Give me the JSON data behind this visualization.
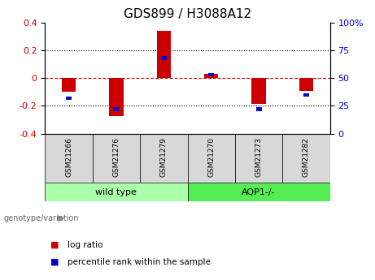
{
  "title": "GDS899 / H3088A12",
  "samples": [
    "GSM21266",
    "GSM21276",
    "GSM21279",
    "GSM21270",
    "GSM21273",
    "GSM21282"
  ],
  "log_ratios": [
    -0.1,
    -0.27,
    0.34,
    0.03,
    -0.185,
    -0.09
  ],
  "percentile_ranks": [
    32,
    22,
    68,
    53,
    22,
    35
  ],
  "ylim_left": [
    -0.4,
    0.4
  ],
  "ylim_right": [
    0,
    100
  ],
  "yticks_left": [
    -0.4,
    -0.2,
    0.0,
    0.2,
    0.4
  ],
  "yticks_right": [
    0,
    25,
    50,
    75,
    100
  ],
  "bar_color_red": "#cc0000",
  "bar_color_blue": "#0000cc",
  "zero_line_color": "#cc0000",
  "dotted_line_color": "#000000",
  "group1_label": "wild type",
  "group2_label": "AQP1-/-",
  "group1_color": "#aaffaa",
  "group2_color": "#55ee55",
  "legend_red_label": "log ratio",
  "legend_blue_label": "percentile rank within the sample",
  "genotype_label": "genotype/variation",
  "title_fontsize": 11,
  "tick_fontsize": 8,
  "label_fontsize": 8,
  "bar_width": 0.3,
  "blue_bar_width": 0.12,
  "blue_bar_height": 0.025,
  "gridspec_ratios": [
    3.2,
    1.4,
    0.55
  ]
}
